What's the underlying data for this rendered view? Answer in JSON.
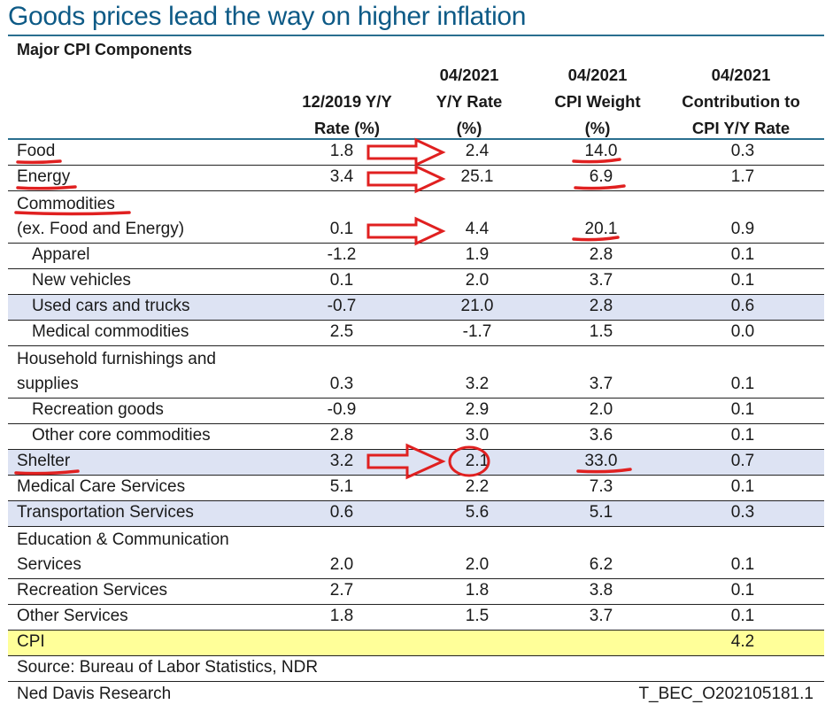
{
  "title": "Goods prices lead the way on higher inflation",
  "subtitle": "Major CPI Components",
  "columns": [
    {
      "lines": [
        "",
        "12/2019 Y/Y",
        "Rate (%)"
      ]
    },
    {
      "lines": [
        "04/2021",
        "Y/Y Rate",
        "(%)"
      ]
    },
    {
      "lines": [
        "04/2021",
        "CPI Weight",
        "(%)"
      ]
    },
    {
      "lines": [
        "04/2021",
        "Contribution to",
        "CPI Y/Y Rate"
      ]
    }
  ],
  "rows": [
    {
      "label": "Food",
      "values": [
        "1.8",
        "2.4",
        "14.0",
        "0.3"
      ]
    },
    {
      "label": "Energy",
      "values": [
        "3.4",
        "25.1",
        "6.9",
        "1.7"
      ]
    },
    {
      "label_line1": "Commodities",
      "label": "(ex. Food and Energy)",
      "values": [
        "0.1",
        "4.4",
        "20.1",
        "0.9"
      ]
    },
    {
      "label": "Apparel",
      "values": [
        "-1.2",
        "1.9",
        "2.8",
        "0.1"
      ]
    },
    {
      "label": "New vehicles",
      "values": [
        "0.1",
        "2.0",
        "3.7",
        "0.1"
      ]
    },
    {
      "label": "Used cars and trucks",
      "values": [
        "-0.7",
        "21.0",
        "2.8",
        "0.6"
      ]
    },
    {
      "label": "Medical commodities",
      "values": [
        "2.5",
        "-1.7",
        "1.5",
        "0.0"
      ]
    },
    {
      "label_line1": "Household furnishings and",
      "label": "supplies",
      "values": [
        "0.3",
        "3.2",
        "3.7",
        "0.1"
      ]
    },
    {
      "label": "Recreation goods",
      "values": [
        "-0.9",
        "2.9",
        "2.0",
        "0.1"
      ]
    },
    {
      "label": "Other core commodities",
      "values": [
        "2.8",
        "3.0",
        "3.6",
        "0.1"
      ]
    },
    {
      "label": "Shelter",
      "values": [
        "3.2",
        "2.1",
        "33.0",
        "0.7"
      ]
    },
    {
      "label": "Medical Care Services",
      "values": [
        "5.1",
        "2.2",
        "7.3",
        "0.1"
      ]
    },
    {
      "label": "Transportation Services",
      "values": [
        "0.6",
        "5.6",
        "5.1",
        "0.3"
      ]
    },
    {
      "label_line1": "Education & Communication",
      "label": "Services",
      "values": [
        "2.0",
        "2.0",
        "6.2",
        "0.1"
      ]
    },
    {
      "label": "Recreation Services",
      "values": [
        "2.7",
        "1.8",
        "3.8",
        "0.1"
      ]
    },
    {
      "label": "Other Services",
      "values": [
        "1.8",
        "1.5",
        "3.7",
        "0.1"
      ]
    },
    {
      "label": "CPI",
      "values": [
        "",
        "",
        "",
        "4.2"
      ]
    }
  ],
  "footer": {
    "source": "Source: Bureau of Labor Statistics, NDR",
    "publisher": "Ned Davis Research",
    "code": "T_BEC_O202105181.1"
  },
  "annotations": {
    "color": "#e02020",
    "highlight_shade": "#dde3f3",
    "highlight_cpi": "#ffff99"
  }
}
